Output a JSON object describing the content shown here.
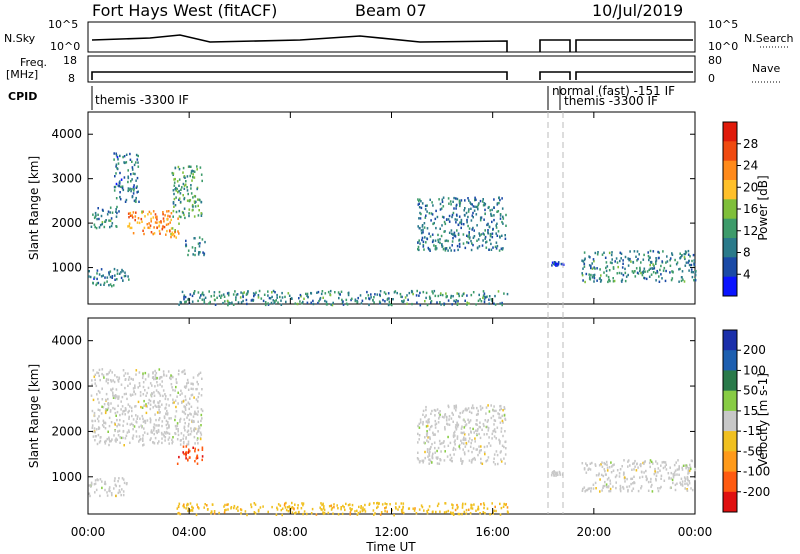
{
  "header": {
    "station": "Fort Hays West (fitACF)",
    "beam": "Beam 07",
    "date": "10/Jul/2019"
  },
  "summary": {
    "left_label": "N.Sky",
    "right_label": "N.Search",
    "left_ticks": [
      "10^5",
      "10^0"
    ],
    "right_ticks": [
      "10^5",
      "10^0"
    ],
    "freq_label_1": "Freq.",
    "freq_label_2": "[MHz]",
    "freq_ticks": [
      "18",
      "8"
    ],
    "nave_label": "Nave",
    "nave_ticks": [
      "80",
      "0"
    ],
    "cpid_label": "CPID",
    "cpid_segments": [
      {
        "text": "themis -3300 IF",
        "start": 0.0,
        "end": 16.6
      },
      {
        "text": "normal (fast) -151 IF",
        "start": 18.3,
        "end": 18.9
      },
      {
        "text": "themis -3300 IF",
        "start": 18.9,
        "end": 24.0
      }
    ]
  },
  "colors": {
    "power": [
      "#0a14ff",
      "#1a4aa6",
      "#2a7a8a",
      "#3d9b6a",
      "#7fbf3a",
      "#ffc02a",
      "#ff8a1a",
      "#f04a10",
      "#e01a0a"
    ],
    "velocity": [
      "#1b2faa",
      "#1d5fb0",
      "#2a7a4a",
      "#88cc44",
      "#c8c8c8",
      "#f0c020",
      "#ff9a1a",
      "#ff5a10",
      "#e01010"
    ]
  },
  "chart_data": [
    {
      "type": "heatmap",
      "title": "",
      "xlabel": "Time UT",
      "ylabel": "Slant Range [km]",
      "xlim": [
        0,
        24
      ],
      "ylim": [
        180,
        4500
      ],
      "x_tick_labels": [
        "00:00",
        "04:00",
        "08:00",
        "12:00",
        "16:00",
        "20:00",
        "00:00"
      ],
      "y_ticks": [
        1000,
        2000,
        3000,
        4000
      ],
      "y_tick_labels": [
        "1000",
        "2000",
        "3000",
        "4000"
      ],
      "colorbar": {
        "label": "Power [dB]",
        "ticks": [
          "4",
          "8",
          "12",
          "16",
          "20",
          "24",
          "28"
        ]
      },
      "data_gap_hours": [
        [
          16.6,
          18.3
        ],
        [
          18.9,
          19.1
        ]
      ],
      "echo_regions": [
        {
          "t_start": 0.1,
          "t_end": 1.2,
          "range_km": [
            1900,
            2400
          ],
          "power_db": 10
        },
        {
          "t_start": 1.0,
          "t_end": 2.0,
          "range_km": [
            2500,
            3600
          ],
          "power_db": 8
        },
        {
          "t_start": 1.5,
          "t_end": 3.6,
          "range_km": [
            1700,
            2300
          ],
          "power_db": 22
        },
        {
          "t_start": 3.3,
          "t_end": 4.5,
          "range_km": [
            2100,
            3300
          ],
          "power_db": 12
        },
        {
          "t_start": 3.8,
          "t_end": 4.6,
          "range_km": [
            1300,
            1700
          ],
          "power_db": 10
        },
        {
          "t_start": 0.0,
          "t_end": 1.6,
          "range_km": [
            600,
            1000
          ],
          "power_db": 8
        },
        {
          "t_start": 3.5,
          "t_end": 16.6,
          "range_km": [
            180,
            500
          ],
          "power_db": 10
        },
        {
          "t_start": 13.0,
          "t_end": 16.5,
          "range_km": [
            1400,
            2600
          ],
          "power_db": 9
        },
        {
          "t_start": 19.5,
          "t_end": 24.0,
          "range_km": [
            700,
            1400
          ],
          "power_db": 10
        },
        {
          "t_start": 18.3,
          "t_end": 18.8,
          "range_km": [
            1050,
            1150
          ],
          "power_db": 6
        }
      ]
    },
    {
      "type": "heatmap",
      "title": "",
      "xlabel": "Time UT",
      "ylabel": "Slant Range [km]",
      "xlim": [
        0,
        24
      ],
      "ylim": [
        180,
        4500
      ],
      "x_tick_labels": [
        "00:00",
        "04:00",
        "08:00",
        "12:00",
        "16:00",
        "20:00",
        "00:00"
      ],
      "y_ticks": [
        1000,
        2000,
        3000,
        4000
      ],
      "y_tick_labels": [
        "1000",
        "2000",
        "3000",
        "4000"
      ],
      "colorbar": {
        "label": "Velocity [m s-1]",
        "ticks": [
          "200",
          "100",
          "50",
          "15",
          "-15",
          "-50",
          "-100",
          "-200"
        ]
      },
      "data_gap_hours": [
        [
          16.6,
          18.3
        ],
        [
          18.9,
          19.1
        ]
      ],
      "echo_regions": [
        {
          "t_start": 0.1,
          "t_end": 4.5,
          "range_km": [
            1700,
            3400
          ],
          "velocity_ms": 0
        },
        {
          "t_start": 3.5,
          "t_end": 4.5,
          "range_km": [
            1300,
            1700
          ],
          "velocity_ms": -180
        },
        {
          "t_start": 0.0,
          "t_end": 1.6,
          "range_km": [
            600,
            1000
          ],
          "velocity_ms": 0
        },
        {
          "t_start": 3.5,
          "t_end": 16.6,
          "range_km": [
            180,
            450
          ],
          "velocity_ms": -60
        },
        {
          "t_start": 13.0,
          "t_end": 16.5,
          "range_km": [
            1300,
            2600
          ],
          "velocity_ms": 0
        },
        {
          "t_start": 19.5,
          "t_end": 24.0,
          "range_km": [
            700,
            1400
          ],
          "velocity_ms": 0
        },
        {
          "t_start": 18.3,
          "t_end": 18.8,
          "range_km": [
            1050,
            1150
          ],
          "velocity_ms": 0
        }
      ]
    }
  ]
}
